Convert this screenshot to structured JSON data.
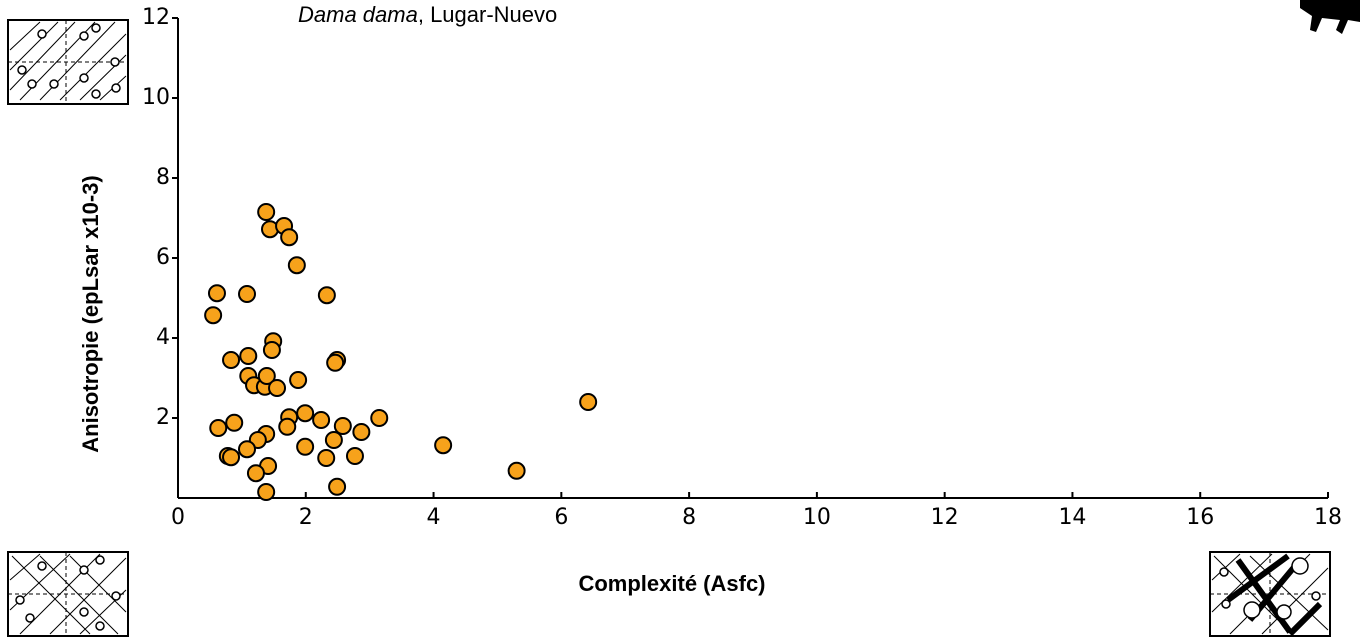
{
  "chart_data": {
    "type": "scatter",
    "title": [
      "Dama dama",
      ", Lugar-Nuevo"
    ],
    "x_label": "Complexité (Asfc)",
    "y_label": "Anisotropie (epLsar x10-3)",
    "color": "#f7a21b",
    "x": [
      1.38,
      1.44,
      1.66,
      1.74,
      1.86,
      0.61,
      1.08,
      2.33,
      0.55,
      1.49,
      1.47,
      1.1,
      0.83,
      2.49,
      2.46,
      1.1,
      1.19,
      1.36,
      1.39,
      1.55,
      1.88,
      6.42,
      1.99,
      1.74,
      2.24,
      3.15,
      0.88,
      0.63,
      1.71,
      2.58,
      2.87,
      1.38,
      1.25,
      2.44,
      4.15,
      1.99,
      1.08,
      0.78,
      0.83,
      2.32,
      2.77,
      1.41,
      1.22,
      5.3,
      1.38,
      2.49
    ],
    "values": [
      7.15,
      6.72,
      6.8,
      6.52,
      5.82,
      5.12,
      5.1,
      5.07,
      4.57,
      3.92,
      3.7,
      3.55,
      3.45,
      3.45,
      3.38,
      3.05,
      2.82,
      2.78,
      3.05,
      2.75,
      2.95,
      2.4,
      2.12,
      2.02,
      1.95,
      2.0,
      1.88,
      1.75,
      1.78,
      1.8,
      1.65,
      1.6,
      1.45,
      1.45,
      1.32,
      1.28,
      1.22,
      1.05,
      1.02,
      1.0,
      1.05,
      0.8,
      0.62,
      0.68,
      0.15,
      0.28
    ],
    "xlim": [
      0,
      18
    ],
    "xticks": [
      0,
      2,
      4,
      6,
      8,
      10,
      12,
      14,
      16,
      18
    ],
    "ylim": [
      0,
      12
    ],
    "yticks": [
      2,
      4,
      6,
      8,
      10,
      12
    ],
    "grid": false
  }
}
